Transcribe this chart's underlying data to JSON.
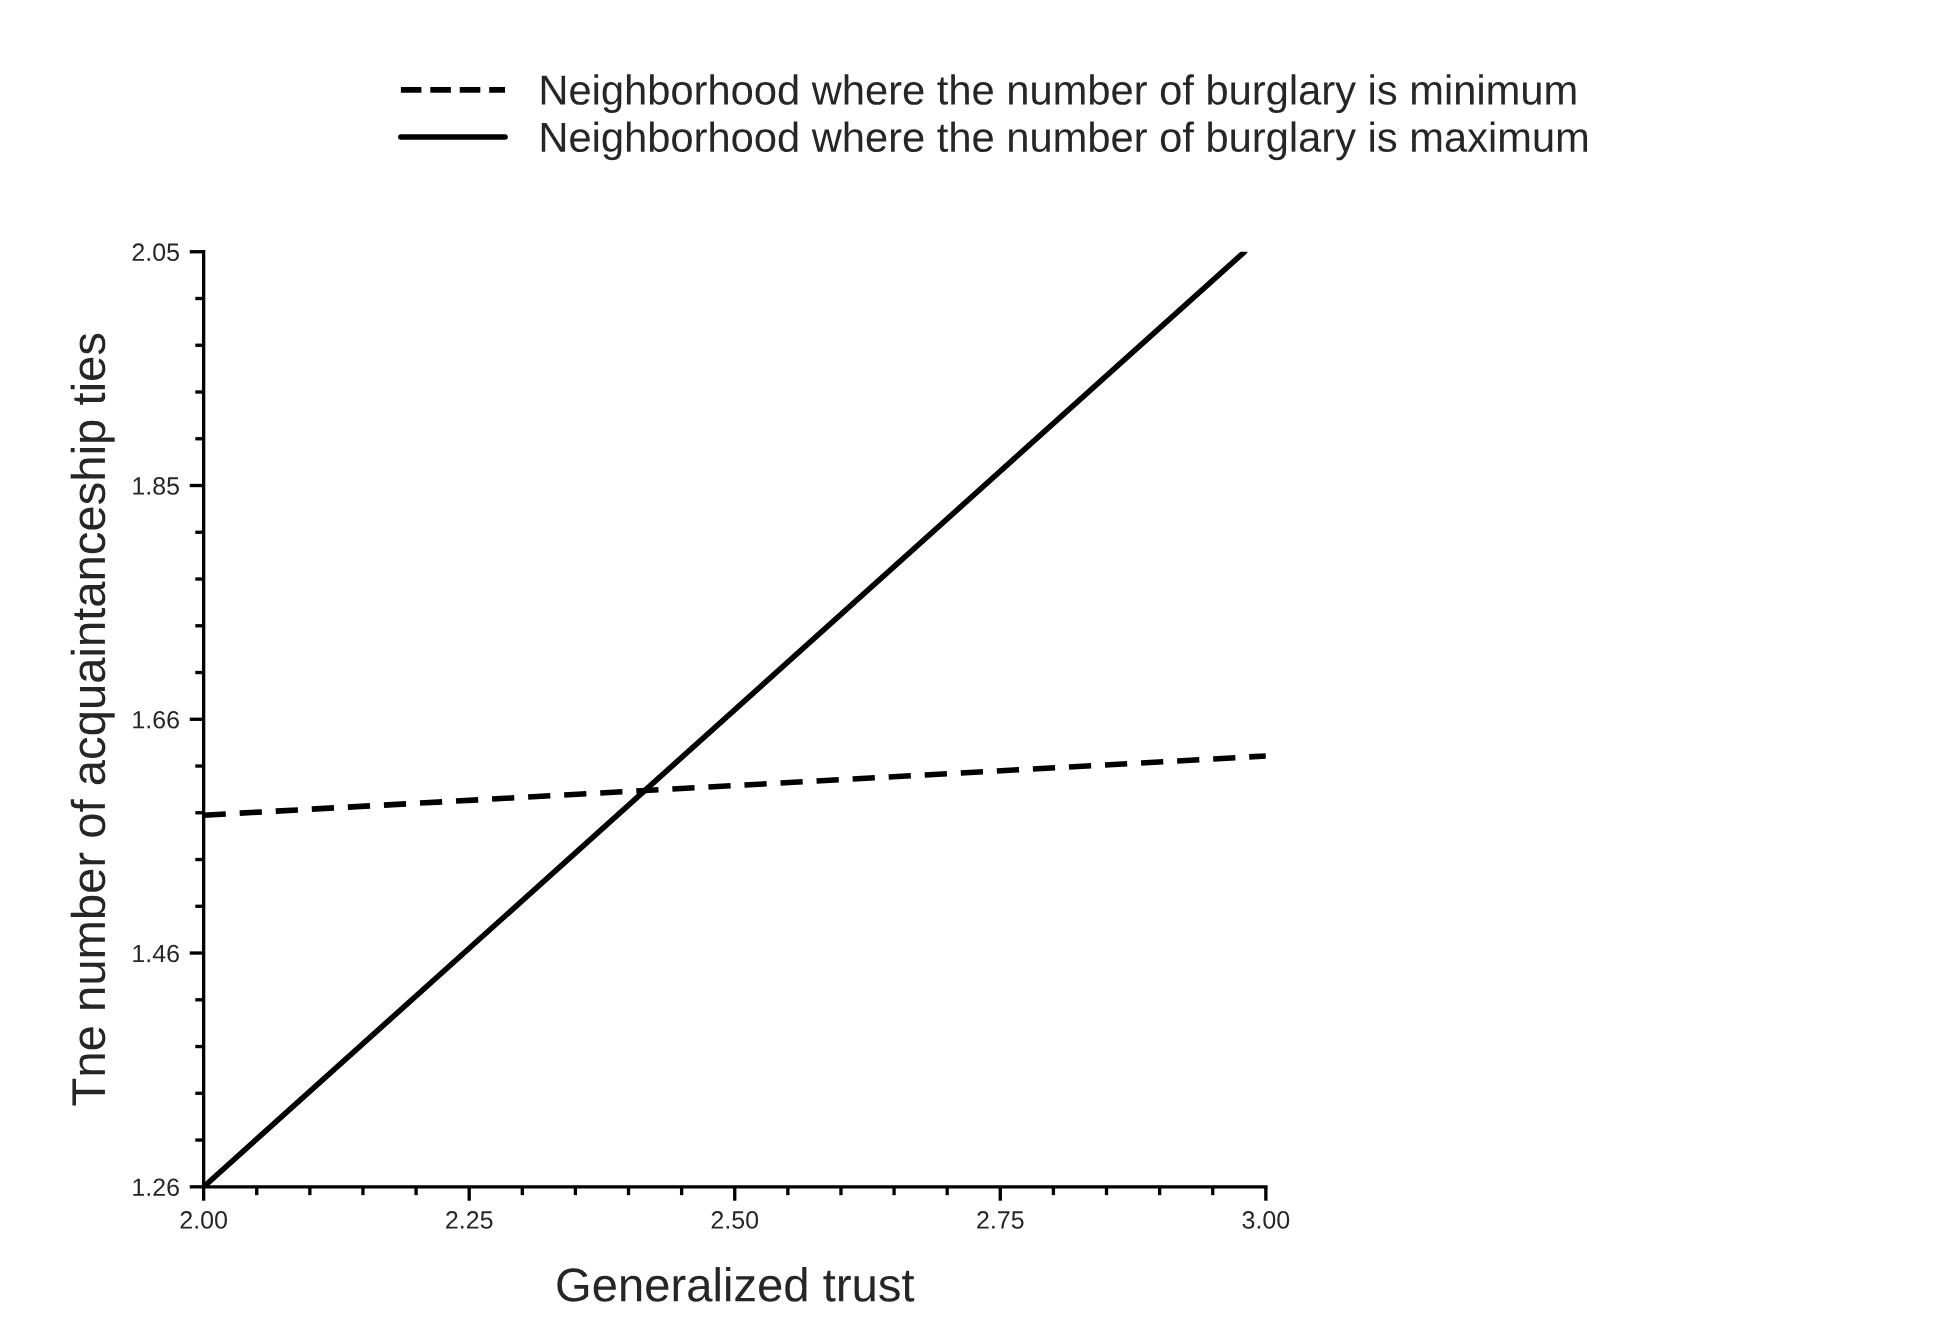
{
  "chart_data": {
    "type": "line",
    "xlabel": "Generalized trust",
    "ylabel": "Tne number of acquaintanceship ties",
    "series": [
      {
        "name": "Neighborhood where the number of burglary is minimum",
        "color": "#000000",
        "line_style": "dashed",
        "x": [
          2.0,
          3.0
        ],
        "values": [
          1.574,
          1.624
        ]
      },
      {
        "name": "Neighborhood where the number of burglary is maximum",
        "color": "#000000",
        "line_style": "solid",
        "x": [
          2.0,
          2.98
        ],
        "values": [
          1.26,
          2.05
        ]
      }
    ],
    "xlim": [
      2.0,
      3.0
    ],
    "xticks": [
      {
        "value": 2.0,
        "label": "2.00"
      },
      2.25,
      {
        "value": 2.5,
        "label": "2.50"
      },
      2.75,
      {
        "value": 3.0,
        "label": "3.00"
      }
    ],
    "ylim": [
      1.26,
      2.05
    ],
    "yticks": [
      1.26,
      {
        "value": 1.4575,
        "label": "1.46"
      },
      {
        "value": 1.655,
        "label": "1.66"
      },
      {
        "value": 1.8525,
        "label": "1.85"
      },
      2.05
    ],
    "legend": "top",
    "grid": false
  }
}
